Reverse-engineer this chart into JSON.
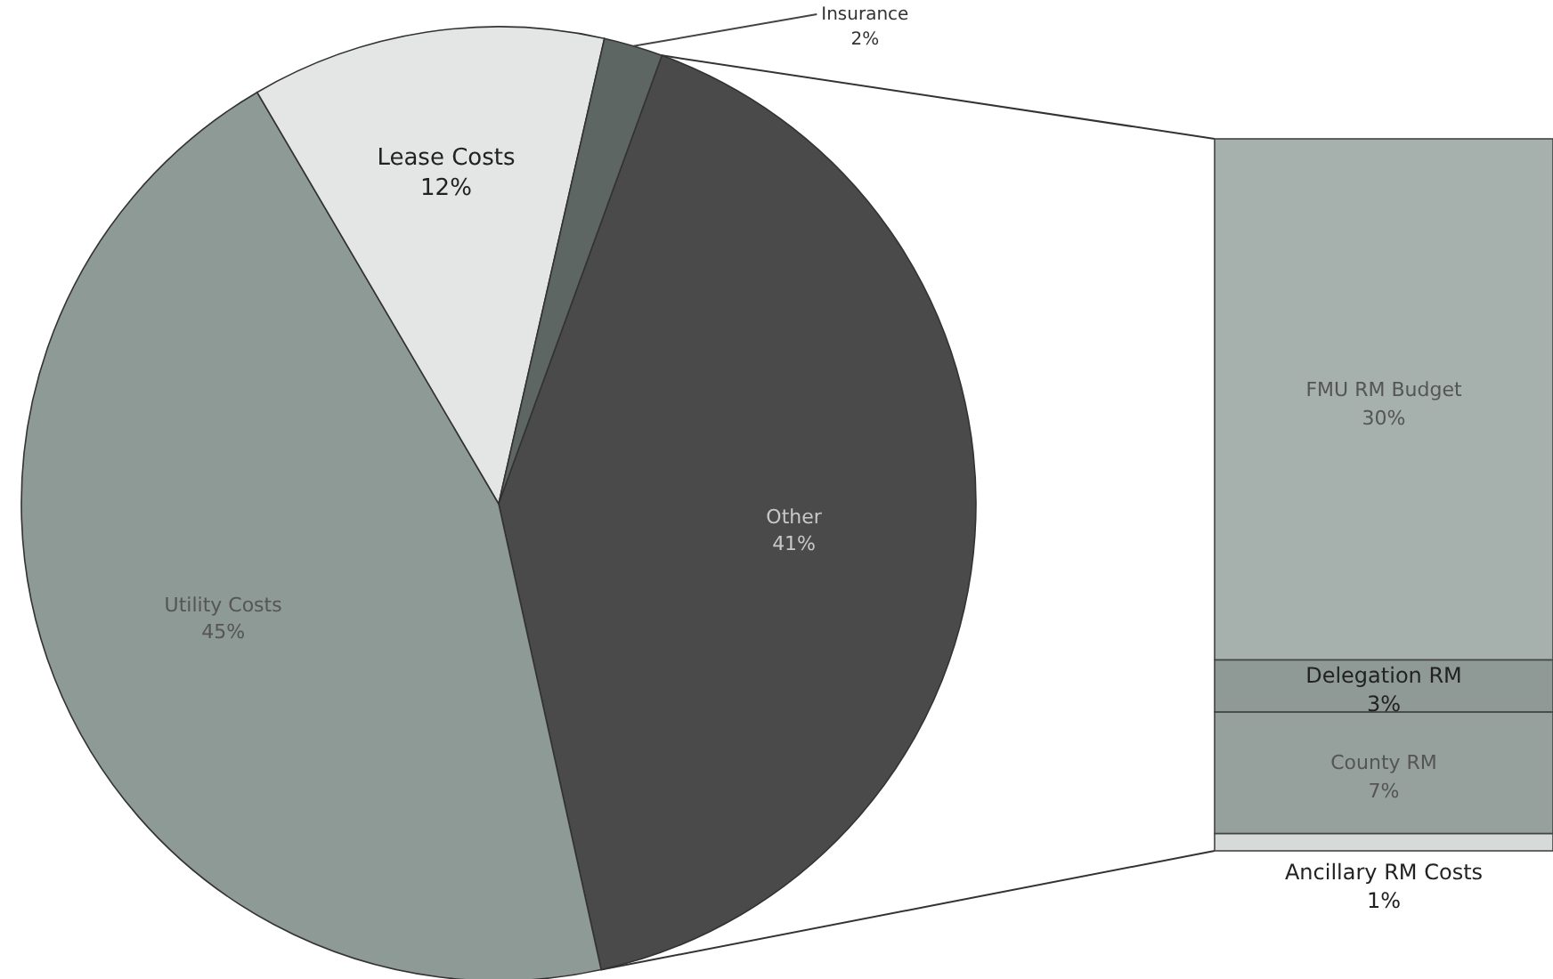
{
  "chart_data": [
    {
      "type": "pie",
      "categories": [
        "Other",
        "Utility Costs",
        "Lease Costs",
        "Insurance"
      ],
      "values": [
        41,
        45,
        12,
        2
      ],
      "colors": [
        "#4a4a4a",
        "#8e9a95",
        "#e3e6e5",
        "#5d6663"
      ],
      "value_labels": [
        "41%",
        "45%",
        "12%",
        "2%"
      ]
    },
    {
      "type": "bar",
      "stacked": true,
      "categories": [
        null
      ],
      "series": [
        {
          "name": "Ancillary RM Costs",
          "color": "#d6dbd9",
          "values": [
            1
          ],
          "value_labels": [
            "1%"
          ]
        },
        {
          "name": "County RM",
          "color": "#96a19d",
          "values": [
            7
          ],
          "value_labels": [
            "7%"
          ]
        },
        {
          "name": "Delegation RM",
          "color": "#8f9a96",
          "values": [
            3
          ],
          "value_labels": [
            "3%"
          ]
        },
        {
          "name": "FMU RM Budget",
          "color": "#a6b0ac",
          "values": [
            30
          ],
          "value_labels": [
            "30%"
          ]
        }
      ]
    }
  ]
}
